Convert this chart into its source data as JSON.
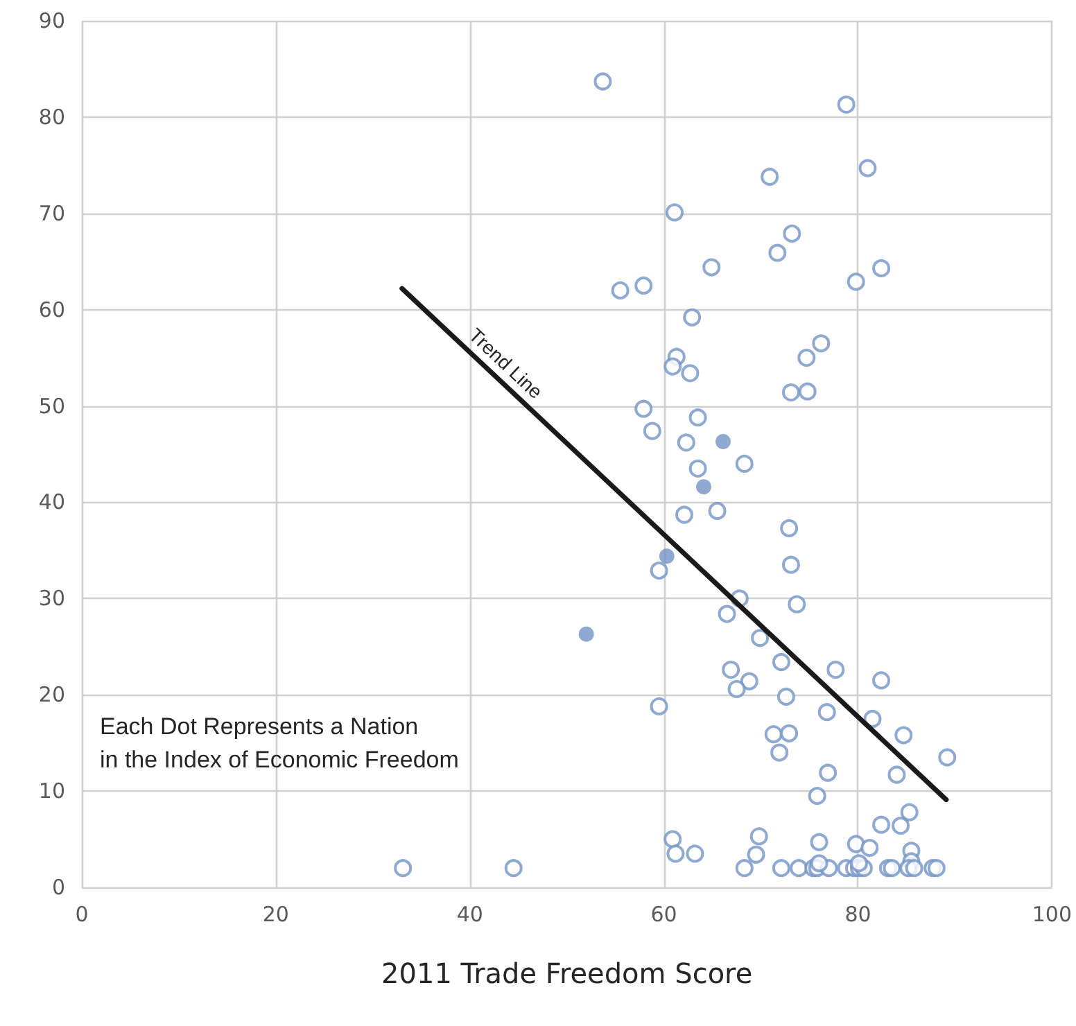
{
  "chart_data": {
    "type": "scatter",
    "xlabel": "2011 Trade Freedom Score",
    "xlim": [
      0,
      100
    ],
    "xticks": [
      0,
      20,
      40,
      60,
      80,
      100
    ],
    "ylim": [
      0,
      90
    ],
    "yticks": [
      0,
      10,
      20,
      30,
      40,
      50,
      60,
      70,
      80,
      90
    ],
    "grid": true,
    "marker": "circle",
    "annotations": [
      "Trend Line",
      "Each Dot Represents a Nation\nin the Index of Economic Freedom"
    ],
    "series": [
      {
        "color": "#7393c4",
        "x": [
          53.7,
          78.8,
          70.9,
          81.0,
          61.1,
          73.2,
          71.7,
          64.9,
          79.8,
          82.4,
          55.5,
          57.9,
          62.9,
          76.2,
          74.7,
          61.3,
          60.9,
          62.7,
          73.1,
          74.8,
          57.9,
          63.5,
          58.8,
          62.3,
          68.3,
          63.5,
          62.1,
          65.5,
          72.9,
          59.5,
          73.1,
          67.8,
          66.5,
          73.7,
          69.9,
          72.1,
          66.9,
          77.7,
          68.8,
          82.4,
          67.5,
          72.6,
          59.5,
          76.8,
          81.5,
          84.7,
          71.3,
          72.9,
          71.9,
          89.2,
          76.9,
          84.0,
          75.8,
          85.3,
          82.4,
          84.4,
          60.9,
          61.2,
          63.2,
          69.8,
          69.5,
          68.3,
          76.0,
          79.8,
          81.2,
          85.5,
          85.5,
          72.1,
          73.9,
          75.4,
          75.8,
          77.0,
          78.8,
          79.6,
          80.1,
          80.6,
          83.1,
          83.5,
          85.2,
          85.8,
          87.7,
          88.1,
          76.0,
          80.1,
          33.1,
          44.5
        ],
        "values": [
          83.7,
          81.3,
          73.8,
          74.7,
          70.1,
          67.9,
          65.9,
          64.4,
          62.9,
          64.3,
          62.0,
          62.5,
          59.2,
          56.5,
          55.0,
          55.1,
          54.1,
          53.4,
          51.4,
          51.5,
          49.7,
          48.8,
          47.4,
          46.2,
          44.0,
          43.5,
          38.7,
          39.1,
          37.3,
          32.9,
          33.5,
          30.0,
          28.4,
          29.4,
          25.9,
          23.4,
          22.6,
          22.6,
          21.4,
          21.5,
          20.6,
          19.8,
          18.8,
          18.2,
          17.5,
          15.8,
          15.9,
          16.0,
          14.0,
          13.5,
          11.9,
          11.7,
          9.5,
          7.8,
          6.5,
          6.4,
          5.0,
          3.5,
          3.5,
          5.3,
          3.4,
          2.0,
          4.7,
          4.5,
          4.1,
          3.8,
          2.7,
          2.0,
          2.0,
          2.0,
          2.0,
          2.0,
          2.0,
          2.0,
          2.0,
          2.0,
          2.0,
          2.0,
          2.0,
          2.0,
          2.0,
          2.0,
          2.5,
          2.5,
          2.0,
          2.0
        ]
      },
      {
        "color": "#7393c4",
        "marker": "circle",
        "x": [
          66.1,
          64.1,
          60.3,
          52.0
        ],
        "values": [
          46.3,
          41.6,
          34.4,
          26.3
        ]
      },
      {
        "type": "line",
        "color": "#1a1a1a",
        "marker": "none",
        "line_style": "solid",
        "x": [
          33.0,
          89.1
        ],
        "values": [
          62.2,
          9.1
        ]
      }
    ]
  }
}
